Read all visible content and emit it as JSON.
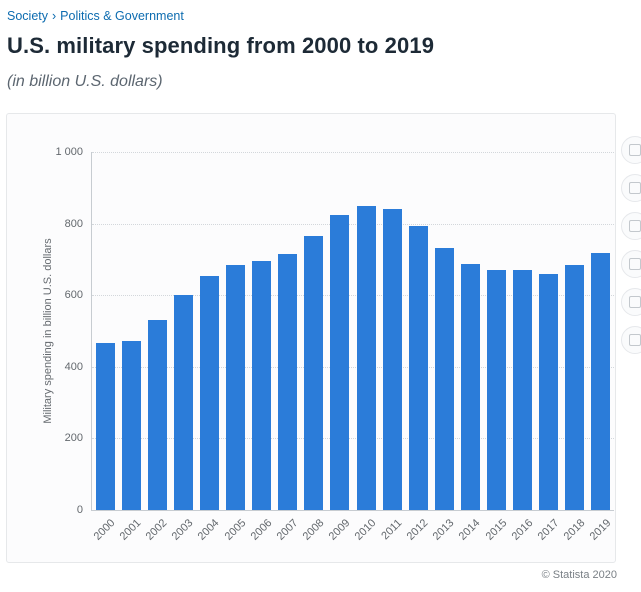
{
  "breadcrumb": {
    "section": "Society",
    "separator": "›",
    "subsection": "Politics & Government"
  },
  "header": {
    "title": "U.S. military spending from 2000 to 2019",
    "subtitle": "(in billion U.S. dollars)"
  },
  "footer": {
    "copyright": "© Statista 2020"
  },
  "colors": {
    "link": "#0d6cb0",
    "title_text": "#1d2a36",
    "bar": "#2b7cd9"
  },
  "chart_data": {
    "type": "bar",
    "title": "U.S. military spending from 2000 to 2019",
    "subtitle": "(in billion U.S. dollars)",
    "categories": [
      "2000",
      "2001",
      "2002",
      "2003",
      "2004",
      "2005",
      "2006",
      "2007",
      "2008",
      "2009",
      "2010",
      "2011",
      "2012",
      "2013",
      "2014",
      "2015",
      "2016",
      "2017",
      "2018",
      "2019"
    ],
    "values": [
      466,
      471,
      530,
      601,
      655,
      685,
      695,
      714,
      765,
      825,
      849,
      840,
      793,
      731,
      686,
      670,
      671,
      660,
      685,
      719
    ],
    "xlabel": "",
    "ylabel": "Military spending in billion U.S. dollars",
    "ylim": [
      0,
      1000
    ],
    "ytick_step": 200,
    "ytick_labels": [
      "0",
      "200",
      "400",
      "600",
      "800",
      "1 000"
    ],
    "grid": "horizontal-dotted",
    "legend": "none",
    "bar_color": "#2b7cd9"
  }
}
